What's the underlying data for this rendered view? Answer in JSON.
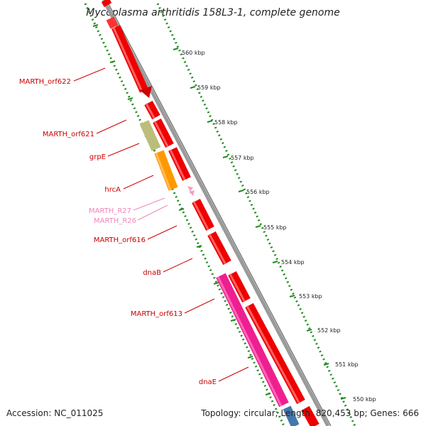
{
  "title": "Mycoplasma arthritidis 158L3-1, complete genome",
  "footer": {
    "accession": "Accession: NC_011025",
    "summary": "Topology: circular; Length: 820,453 bp; Genes: 666"
  },
  "scale": {
    "unit": "kbp",
    "ticks": [
      "560 kbp",
      "559 kbp",
      "558 kbp",
      "557 kbp",
      "556 kbp",
      "555 kbp",
      "554 kbp",
      "553 kbp",
      "552 kbp",
      "551 kbp",
      "550 kbp"
    ]
  },
  "colors": {
    "cds": "#ee0000",
    "trna": "#f4a0c8",
    "grpE": "#bdbd7a",
    "hrcA": "#ff9900",
    "dnaE": "#ee1f8f",
    "label": "#cc0000",
    "label_rna": "#ee88bb",
    "track_dots": "#228b22",
    "backbone": "#999999"
  },
  "genes": [
    {
      "name": "MARTH_orf622",
      "type": "CDS"
    },
    {
      "name": "MARTH_orf621",
      "type": "CDS"
    },
    {
      "name": "grpE",
      "type": "CDS"
    },
    {
      "name": "hrcA",
      "type": "CDS"
    },
    {
      "name": "MARTH_R27",
      "type": "tRNA"
    },
    {
      "name": "MARTH_R26",
      "type": "tRNA"
    },
    {
      "name": "MARTH_orf616",
      "type": "CDS"
    },
    {
      "name": "dnaB",
      "type": "CDS"
    },
    {
      "name": "MARTH_orf613",
      "type": "CDS"
    },
    {
      "name": "dnaE",
      "type": "CDS"
    }
  ]
}
